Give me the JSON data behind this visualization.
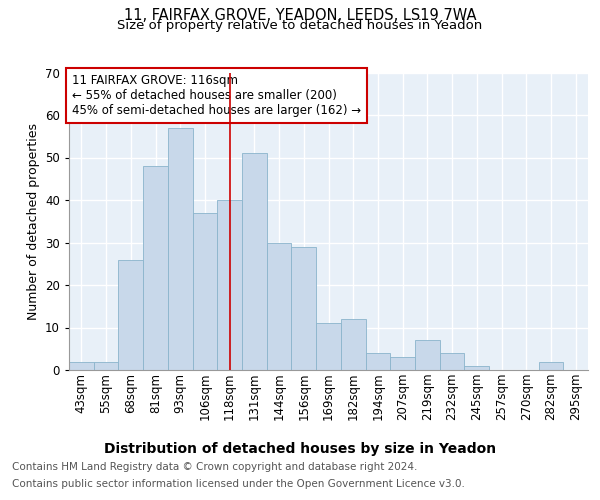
{
  "title1": "11, FAIRFAX GROVE, YEADON, LEEDS, LS19 7WA",
  "title2": "Size of property relative to detached houses in Yeadon",
  "xlabel": "Distribution of detached houses by size in Yeadon",
  "ylabel": "Number of detached properties",
  "categories": [
    "43sqm",
    "55sqm",
    "68sqm",
    "81sqm",
    "93sqm",
    "106sqm",
    "118sqm",
    "131sqm",
    "144sqm",
    "156sqm",
    "169sqm",
    "182sqm",
    "194sqm",
    "207sqm",
    "219sqm",
    "232sqm",
    "245sqm",
    "257sqm",
    "270sqm",
    "282sqm",
    "295sqm"
  ],
  "values": [
    2,
    2,
    26,
    48,
    57,
    37,
    40,
    51,
    30,
    29,
    11,
    12,
    4,
    3,
    7,
    4,
    1,
    0,
    0,
    2,
    0
  ],
  "bar_color": "#c8d8ea",
  "bar_edge_color": "#8ab4cc",
  "highlight_index": 6,
  "highlight_line_color": "#cc0000",
  "annotation_text": "11 FAIRFAX GROVE: 116sqm\n← 55% of detached houses are smaller (200)\n45% of semi-detached houses are larger (162) →",
  "annotation_box_color": "#ffffff",
  "annotation_box_edge": "#cc0000",
  "ylim": [
    0,
    70
  ],
  "yticks": [
    0,
    10,
    20,
    30,
    40,
    50,
    60,
    70
  ],
  "background_color": "#ffffff",
  "plot_bg_color": "#e8f0f8",
  "grid_color": "#ffffff",
  "footer_line1": "Contains HM Land Registry data © Crown copyright and database right 2024.",
  "footer_line2": "Contains public sector information licensed under the Open Government Licence v3.0.",
  "title1_fontsize": 10.5,
  "title2_fontsize": 9.5,
  "xlabel_fontsize": 10,
  "ylabel_fontsize": 9,
  "tick_fontsize": 8.5,
  "annotation_fontsize": 8.5,
  "footer_fontsize": 7.5
}
